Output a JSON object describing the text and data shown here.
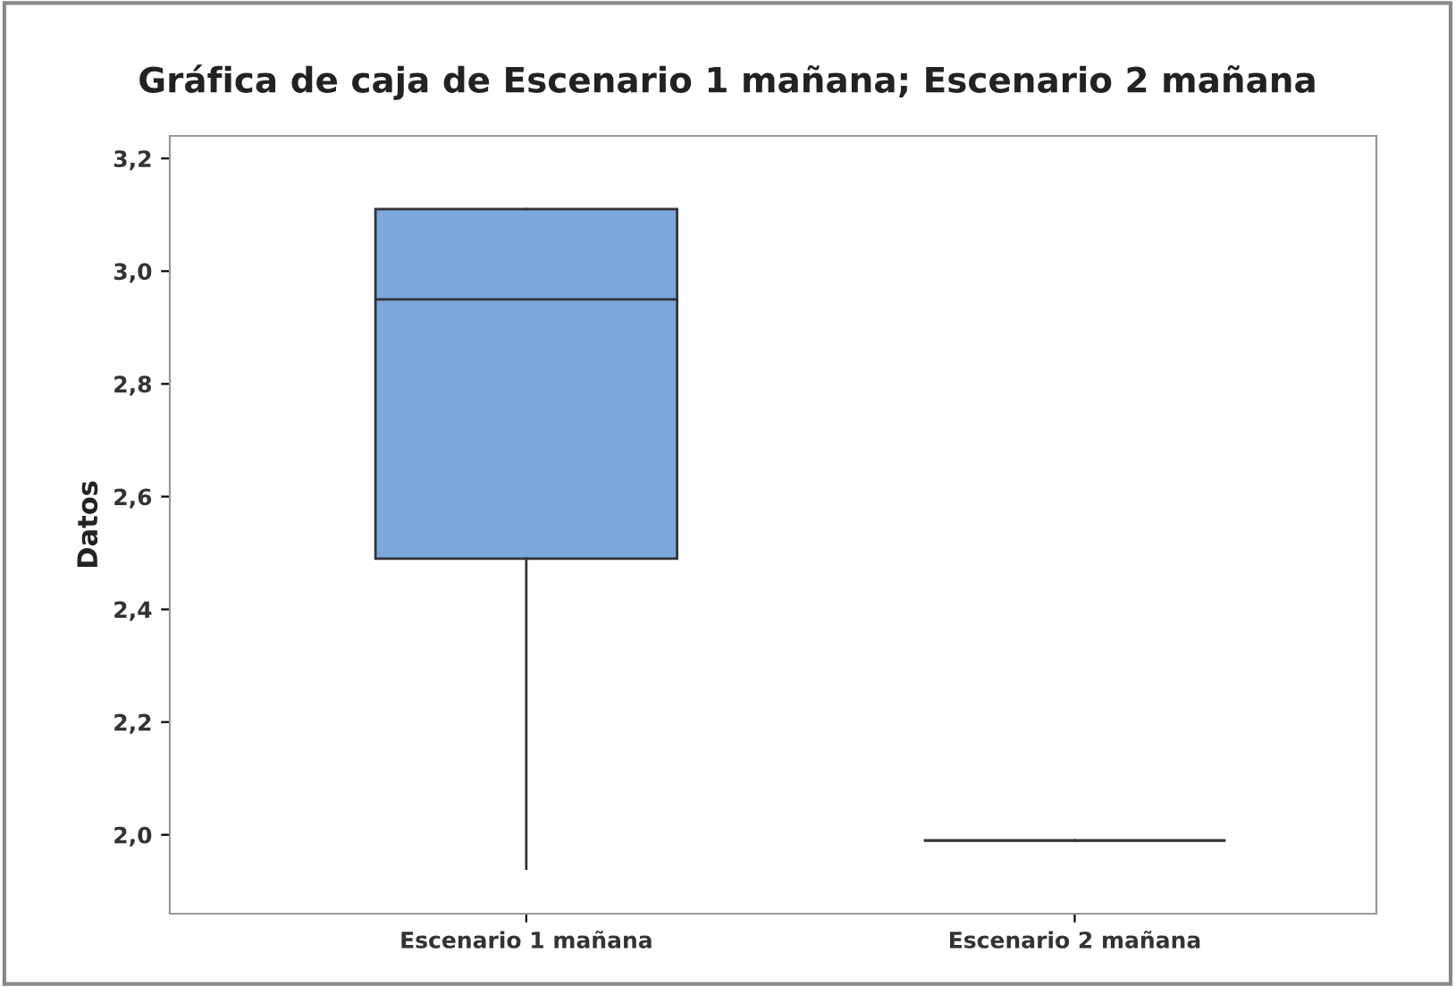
{
  "chart_data": {
    "type": "box",
    "title": "Gráfica de caja de Escenario 1 mañana; Escenario 2 mañana",
    "ylabel": "Datos",
    "categories": [
      "Escenario 1 mañana",
      "Escenario 2 mañana"
    ],
    "boxes": [
      {
        "low": 1.94,
        "q1": 2.49,
        "median": 2.95,
        "q3": 3.11,
        "high": 3.11
      },
      {
        "low": 1.99,
        "q1": 1.99,
        "median": 1.99,
        "q3": 1.99,
        "high": 1.99
      }
    ],
    "colors": [
      "#7ba7dc",
      "#333333"
    ],
    "ylim": [
      1.86,
      3.24
    ],
    "yticks": [
      {
        "value": 2.0,
        "label": "2,0"
      },
      {
        "value": 2.2,
        "label": "2,2"
      },
      {
        "value": 2.4,
        "label": "2,4"
      },
      {
        "value": 2.6,
        "label": "2,6"
      },
      {
        "value": 2.8,
        "label": "2,8"
      },
      {
        "value": 3.0,
        "label": "3,0"
      },
      {
        "value": 3.2,
        "label": "3,2"
      }
    ],
    "grid": false
  }
}
